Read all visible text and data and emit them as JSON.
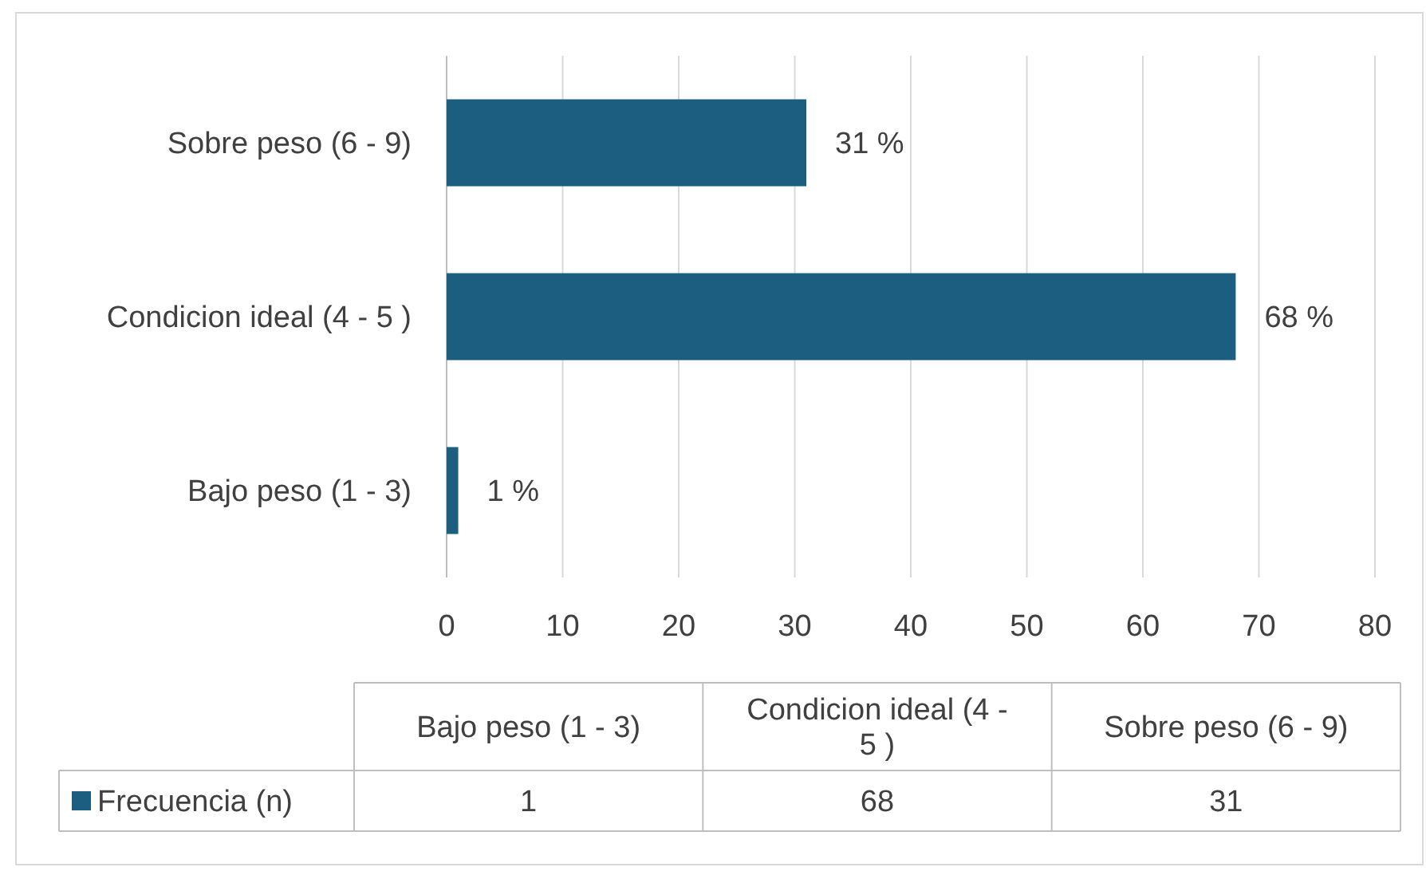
{
  "chart_data": [
    {
      "type": "bar",
      "orientation": "horizontal",
      "categories": [
        "Sobre peso (6 - 9)",
        "Condicion ideal (4 - 5 )",
        "Bajo peso (1 - 3)"
      ],
      "series": [
        {
          "color": "#1b5e80",
          "values": [
            31,
            68,
            1
          ],
          "value_labels": [
            "31 %",
            "68 %",
            "1 %"
          ]
        }
      ],
      "xlim": [
        0,
        80
      ],
      "xticks": [
        0,
        10,
        20,
        30,
        40,
        50,
        60,
        70,
        80
      ],
      "grid": "x"
    },
    {
      "type": "other",
      "categories": [
        "Bajo peso (1 - 3)",
        "Condicion ideal (4 - 5 )",
        "Sobre peso (6 - 9)"
      ],
      "series": [
        {
          "name": "Frecuencia (n)",
          "color": "#1b5e80",
          "values": [
            1,
            68,
            31
          ]
        }
      ],
      "data_labels": true,
      "legend": "left"
    }
  ]
}
